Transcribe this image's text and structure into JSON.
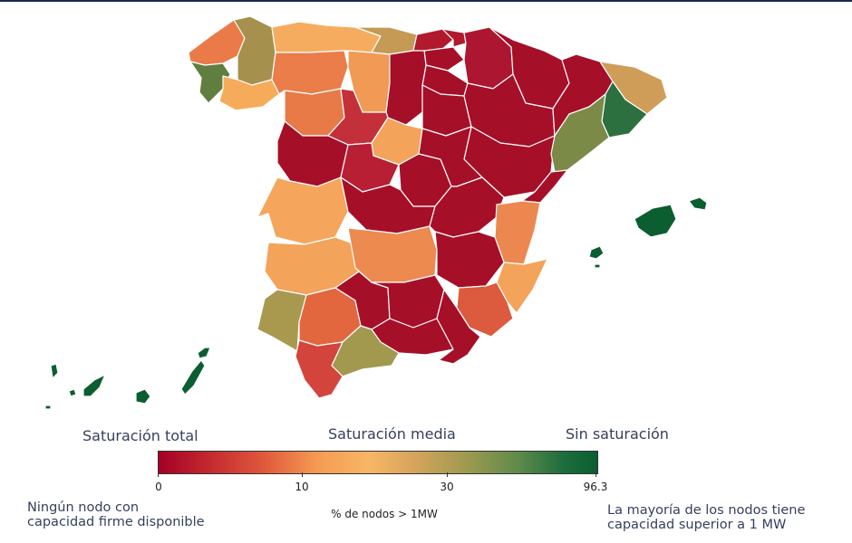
{
  "legend": {
    "label_left": "Saturación total",
    "label_center": "Saturación media",
    "label_right": "Sin saturación",
    "ticks": [
      "0",
      "10",
      "30",
      "96.3"
    ],
    "axis_title": "% de nodos > 1MW",
    "note_left": [
      "Ningún nodo con",
      "capacidad firme disponible"
    ],
    "note_right": [
      "La mayoría de los nodos tiene",
      "capacidad superior a 1 MW"
    ]
  },
  "colors": {
    "saturacion_total": "#a50026",
    "alta": "#c42b30",
    "media_alta": "#e0583c",
    "media": "#f59a52",
    "media_baja": "#c9a05a",
    "baja": "#9f9a50",
    "sin_saturacion": "#0a5e30"
  }
}
